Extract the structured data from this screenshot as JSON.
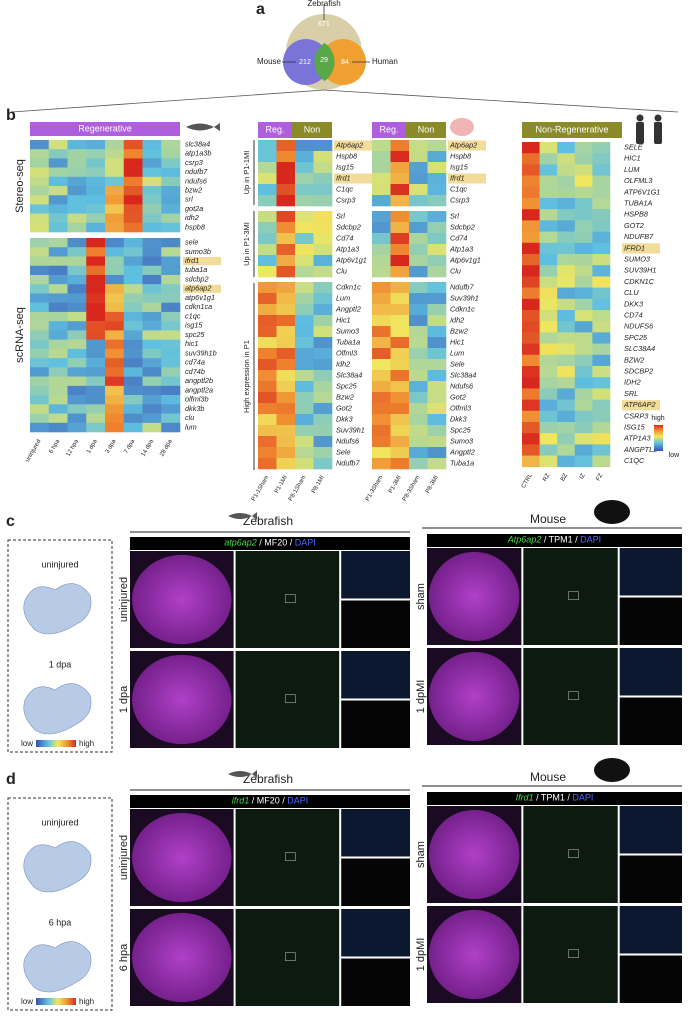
{
  "panel_a": {
    "letter": "a",
    "zebrafish": "Zebrafish",
    "zebrafish_only": "671",
    "mouse": "Mouse",
    "mouse_only": "212",
    "shared": "29",
    "human_only": "84",
    "human": "Human"
  },
  "panel_b": {
    "letter": "b",
    "zebrafish": {
      "header": "Regenerative",
      "groups": [
        "Stereo-seq",
        "scRNA-seq"
      ],
      "genes": [
        "slc38a4",
        "atp1a3b",
        "csrp3",
        "ndufb7",
        "ndufs6",
        "bzw2",
        "srl",
        "got2a",
        "idh2",
        "hspb8",
        "sele",
        "sumo3b",
        "ifrd1",
        "tuba1a",
        "sdcbp2",
        "atp6ap2",
        "atp6v1g1",
        "cdkn1ca",
        "c1qc",
        "isg15",
        "spc25",
        "hic1",
        "suv39h1b",
        "cd74a",
        "cd74b",
        "angptl2b",
        "angptl2a",
        "olfml3b",
        "dkk3b",
        "clu",
        "lum"
      ],
      "samples": [
        "uninjured",
        "6 hpa",
        "12 hpa",
        "1 dpa",
        "3 dpa",
        "7 dpa",
        "14 dpa",
        "28 dpa"
      ]
    },
    "mouse_1": {
      "header_reg": "Reg.",
      "header_non": "Non",
      "groups": [
        "Up in P1-1MI",
        "Up in P1-3MI",
        "High expression in P1"
      ],
      "genes": [
        "Atp6ap2",
        "Hspb8",
        "Isg15",
        "Ifrd1",
        "C1qc",
        "Csrp3",
        "Srl",
        "Sdcbp2",
        "Cd74",
        "Atp1a3",
        "Atp6v1g1",
        "Clu",
        "Cdkn1c",
        "Lum",
        "Angptl2",
        "Hic1",
        "Sumo3",
        "Tuba1a",
        "Olfml3",
        "Idh2",
        "Slc38a4",
        "Spc25",
        "Bzw2",
        "Got2",
        "Dkk3",
        "Suv39h1",
        "Ndufs6",
        "Sele",
        "Ndufb7"
      ],
      "samples": [
        "P1-1Sham",
        "P1-1MI",
        "P8-1Sham",
        "P8-1MI"
      ]
    },
    "mouse_3": {
      "header_reg": "Reg.",
      "header_non": "Non",
      "genes": [
        "Atp6ap2",
        "Hspb8",
        "Isg15",
        "Ifrd1",
        "C1qc",
        "Csrp3",
        "Srl",
        "Sdcbp2",
        "Cd74",
        "Atp1a3",
        "Atp6v1g1",
        "Clu",
        "Ndufb7",
        "Suv39h1",
        "Cdkn1c",
        "Idh2",
        "Bzw2",
        "Hic1",
        "Lum",
        "Sele",
        "Slc38a4",
        "Ndufs6",
        "Got2",
        "Olfml3",
        "Dkk3",
        "Spc25",
        "Sumo3",
        "Angptl2",
        "Tuba1a"
      ],
      "samples": [
        "P1-3Sham",
        "P1-3MI",
        "P8-3Sham",
        "P8-3MI"
      ]
    },
    "human": {
      "header": "Non-Regenerative",
      "genes": [
        "SELE",
        "HIC1",
        "LUM",
        "OLFML3",
        "ATP6V1G1",
        "TUBA1A",
        "HSPB8",
        "GOT2",
        "NDUFB7",
        "IFRD1",
        "SUMO3",
        "SUV39H1",
        "CDKN1C",
        "CLU",
        "DKK3",
        "CD74",
        "NDUFS6",
        "SPC25",
        "SLC38A4",
        "BZW2",
        "SDCBP2",
        "IDH2",
        "SRL",
        "ATP6AP2",
        "CSRP3",
        "ISG15",
        "ATP1A3",
        "ANGPTL2",
        "C1QC"
      ],
      "samples": [
        "CTRL",
        "RZ",
        "BZ",
        "IZ",
        "FZ"
      ],
      "legend_high": "high",
      "legend_low": "low"
    }
  },
  "panel_c": {
    "letter": "c",
    "zebrafish": "Zebrafish",
    "mouse": "Mouse",
    "spatial_labels": [
      "uninjured",
      "1 dpa"
    ],
    "scale_low": "low",
    "scale_high": "high",
    "zebrafish_stain": [
      "atp6ap2",
      " / MF20 / ",
      "DAPI"
    ],
    "zebrafish_rows": [
      "uninjured",
      "1 dpa"
    ],
    "mouse_stain": [
      "Atp6ap2",
      " / TPM1 / ",
      "DAPI"
    ],
    "mouse_rows": [
      "sham",
      "1 dpMI"
    ]
  },
  "panel_d": {
    "letter": "d",
    "zebrafish": "Zebrafish",
    "mouse": "Mouse",
    "spatial_labels": [
      "uninjured",
      "6 hpa"
    ],
    "scale_low": "low",
    "scale_high": "high",
    "zebrafish_stain": [
      "ifrd1",
      " / MF20 / ",
      "DAPI"
    ],
    "zebrafish_rows": [
      "uninjured",
      "6 hpa"
    ],
    "mouse_stain": [
      "Ifrd1",
      " / TPM1 / ",
      "DAPI"
    ],
    "mouse_rows": [
      "sham",
      "1 dpMI"
    ]
  }
}
